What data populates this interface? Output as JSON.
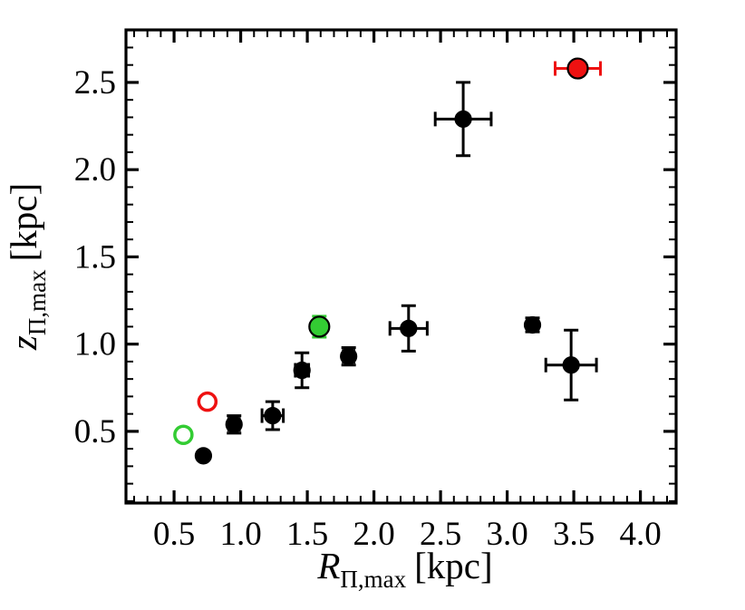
{
  "figure": {
    "background": "#ffffff"
  },
  "chart_data": {
    "type": "scatter",
    "title": "",
    "xlabel": "R_Π,max [kpc]",
    "ylabel": "z_Π,max [kpc]",
    "xlabel_parts": {
      "variable": "R",
      "subscript": "Π,max",
      "unit": "[kpc]"
    },
    "ylabel_parts": {
      "variable": "z",
      "subscript": "Π,max",
      "unit": "[kpc]"
    },
    "xlim": [
      0.139,
      4.268
    ],
    "ylim": [
      0.089,
      2.801
    ],
    "x_major_ticks": [
      0.5,
      1.0,
      1.5,
      2.0,
      2.5,
      3.0,
      3.5,
      4.0
    ],
    "y_major_ticks": [
      0.5,
      1.0,
      1.5,
      2.0,
      2.5
    ],
    "minor_tick_step": 0.1,
    "grid": false,
    "legend": "none",
    "colors": {
      "black": "#000000",
      "red": "#ee1111",
      "green": "#33cc33"
    },
    "series": [
      {
        "name": "black-filled",
        "marker": "filled-circle",
        "fill": "#000000",
        "edge": "#000000",
        "error_color": "#000000",
        "marker_size": 8.5,
        "points": [
          {
            "x": 0.72,
            "y": 0.36,
            "xerr": 0,
            "yerr": 0
          },
          {
            "x": 0.95,
            "y": 0.54,
            "xerr": 0.04,
            "yerr": 0.05
          },
          {
            "x": 1.24,
            "y": 0.59,
            "xerr": 0.08,
            "yerr": 0.08
          },
          {
            "x": 1.46,
            "y": 0.85,
            "xerr": 0.05,
            "yerr": 0.1
          },
          {
            "x": 1.81,
            "y": 0.93,
            "xerr": 0.04,
            "yerr": 0.05
          },
          {
            "x": 2.26,
            "y": 1.09,
            "xerr": 0.14,
            "yerr": 0.13
          },
          {
            "x": 2.67,
            "y": 2.29,
            "xerr": 0.21,
            "yerr": 0.21
          },
          {
            "x": 3.19,
            "y": 1.11,
            "xerr": 0.04,
            "yerr": 0.04
          },
          {
            "x": 3.48,
            "y": 0.88,
            "xerr": 0.19,
            "yerr": 0.2
          }
        ]
      },
      {
        "name": "green-filled",
        "marker": "filled-circle",
        "fill": "#33cc33",
        "edge": "#000000",
        "error_color": "#33cc33",
        "marker_size": 11,
        "points": [
          {
            "x": 1.59,
            "y": 1.1,
            "xerr": 0,
            "yerr": 0.06
          }
        ]
      },
      {
        "name": "red-filled",
        "marker": "filled-circle",
        "fill": "#ee1111",
        "edge": "#000000",
        "error_color": "#ee1111",
        "marker_size": 11,
        "points": [
          {
            "x": 3.53,
            "y": 2.58,
            "xerr": 0.17,
            "yerr": 0
          }
        ]
      },
      {
        "name": "green-open",
        "marker": "open-circle",
        "fill": "none",
        "edge": "#33cc33",
        "error_color": "#33cc33",
        "marker_size": 9.5,
        "points": [
          {
            "x": 0.57,
            "y": 0.48,
            "xerr": 0,
            "yerr": 0
          }
        ]
      },
      {
        "name": "red-open",
        "marker": "open-circle",
        "fill": "none",
        "edge": "#ee1111",
        "error_color": "#ee1111",
        "marker_size": 9.5,
        "points": [
          {
            "x": 0.75,
            "y": 0.67,
            "xerr": 0,
            "yerr": 0
          }
        ]
      }
    ]
  }
}
